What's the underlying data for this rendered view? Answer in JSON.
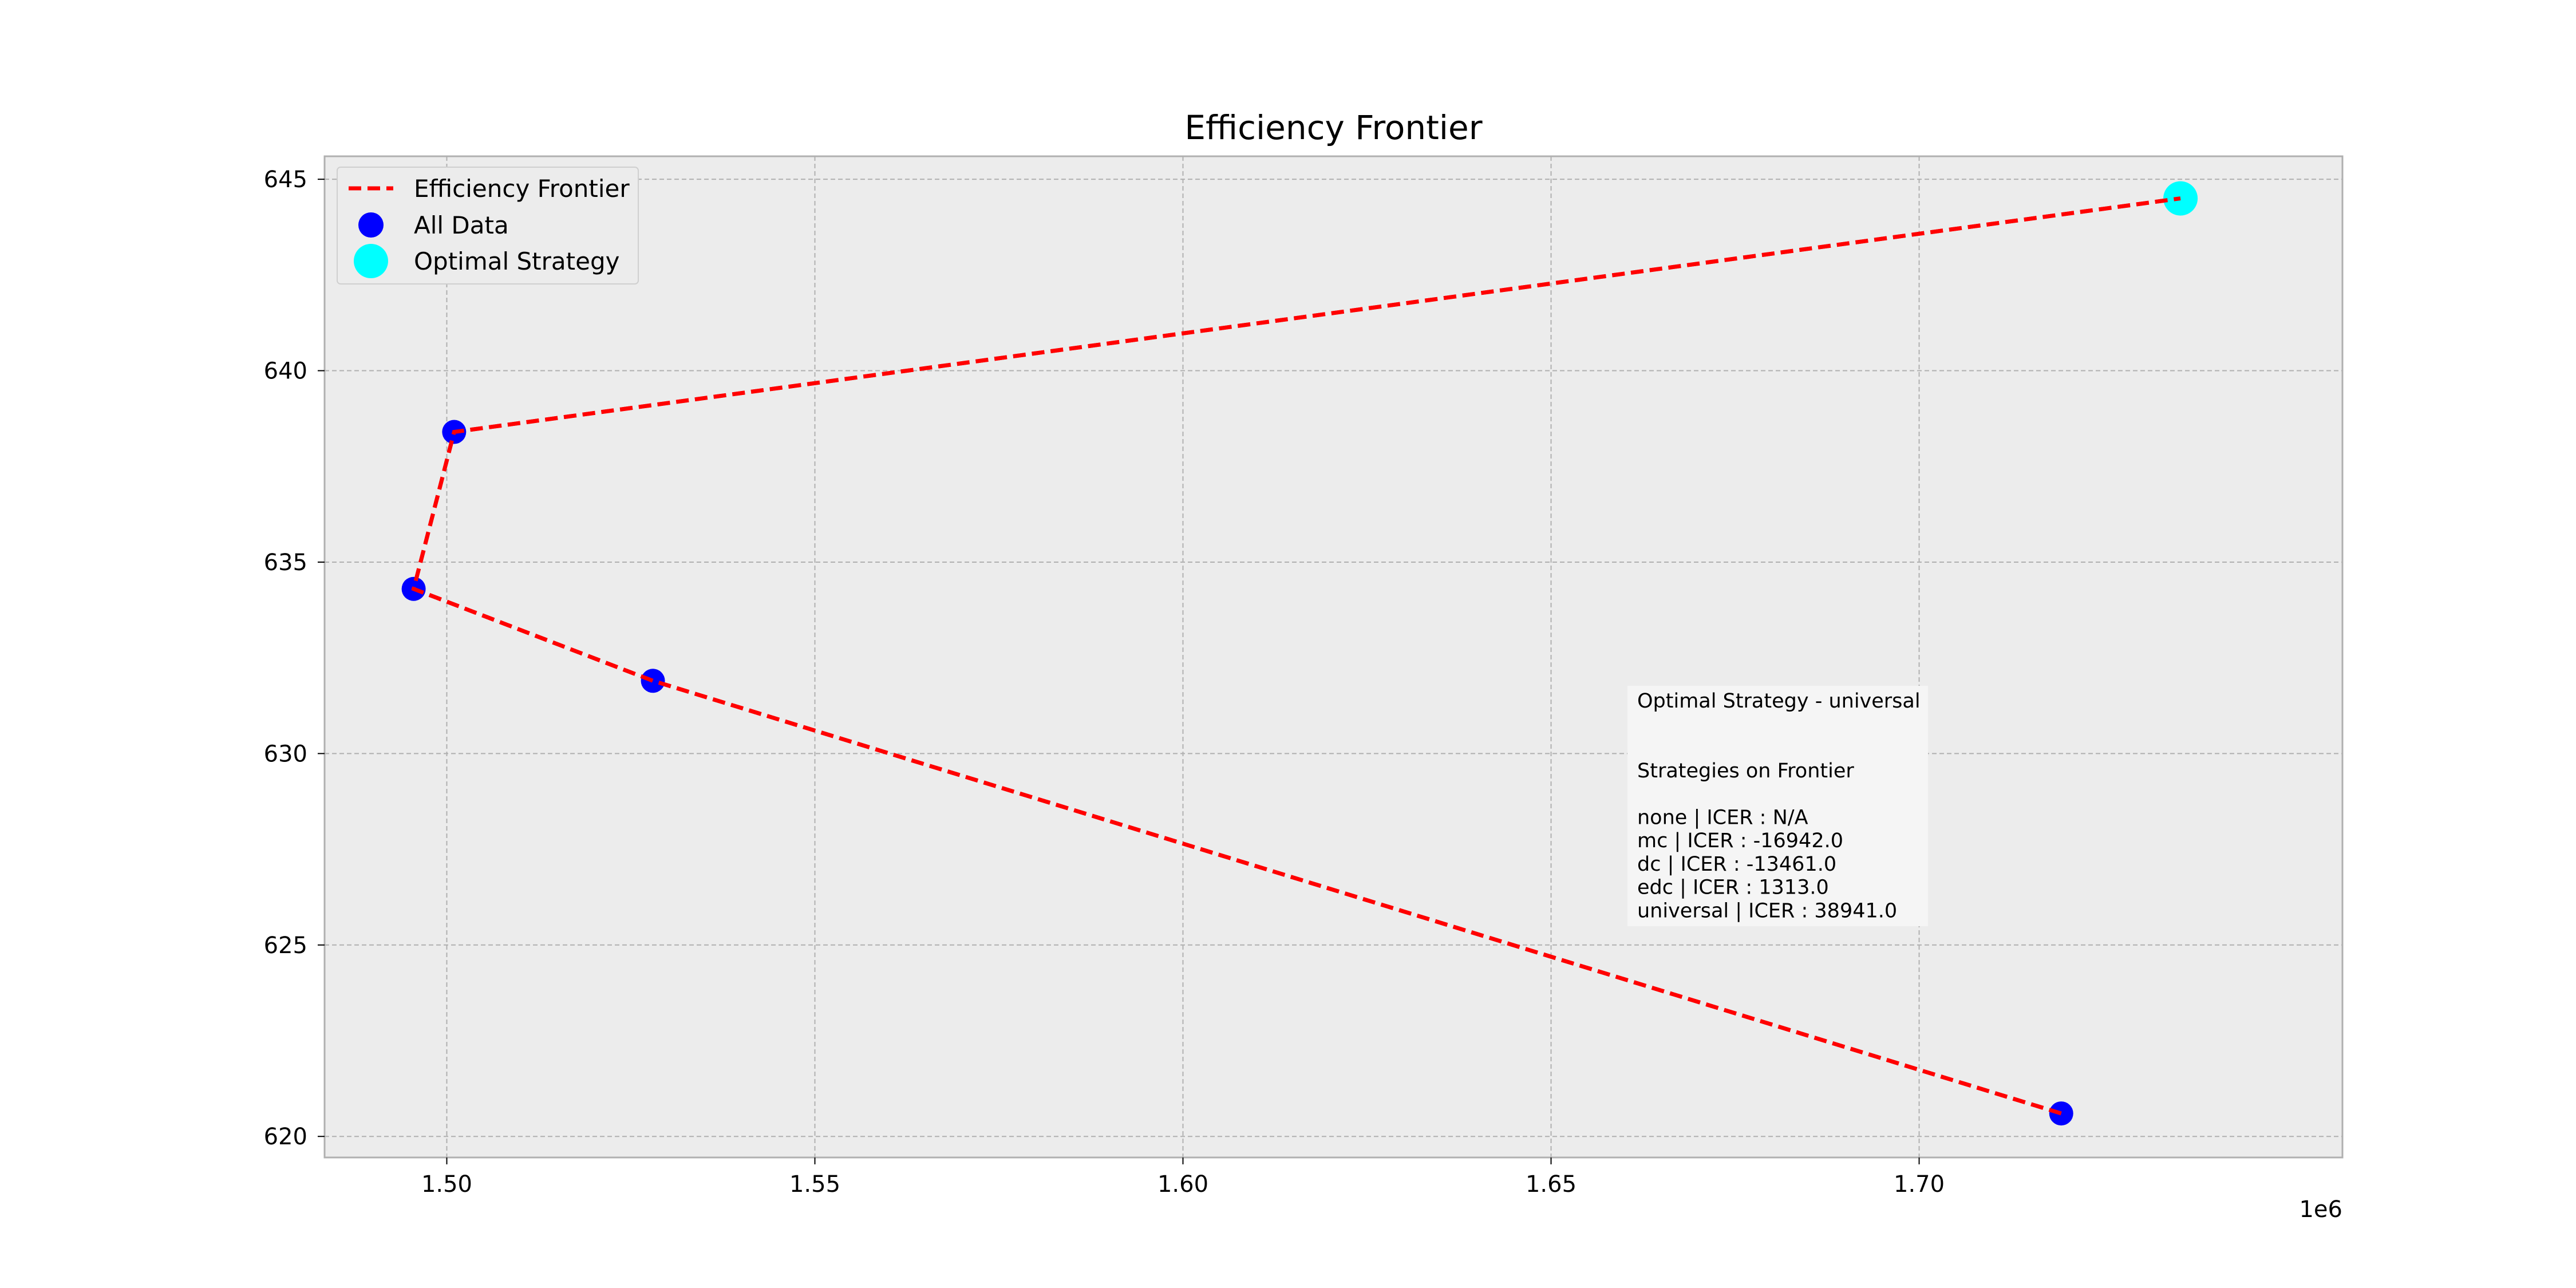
{
  "chart_data": {
    "type": "scatter",
    "title": "Efficiency Frontier",
    "xlabel": "",
    "ylabel": "",
    "x_offset_label": "1e6",
    "xlim": [
      1.4834,
      1.7575
    ],
    "ylim": [
      619.45,
      645.6
    ],
    "xticks": [
      1.5,
      1.55,
      1.6,
      1.65,
      1.7
    ],
    "xtick_labels": [
      "1.50",
      "1.55",
      "1.60",
      "1.65",
      "1.70"
    ],
    "yticks": [
      620,
      625,
      630,
      635,
      640,
      645
    ],
    "ytick_labels": [
      "620",
      "625",
      "630",
      "635",
      "640",
      "645"
    ],
    "grid": true,
    "legend_position": "top-left",
    "series": [
      {
        "name": "Efficiency Frontier",
        "kind": "line",
        "style": "dashed",
        "color": "#ff0000",
        "points": [
          {
            "x": 1.7193,
            "y": 620.6
          },
          {
            "x": 1.528,
            "y": 631.9
          },
          {
            "x": 1.4955,
            "y": 634.3
          },
          {
            "x": 1.501,
            "y": 638.4
          },
          {
            "x": 1.7355,
            "y": 644.5
          }
        ]
      },
      {
        "name": "All Data",
        "kind": "scatter",
        "color": "#0000ff",
        "points": [
          {
            "x": 1.4955,
            "y": 634.3
          },
          {
            "x": 1.501,
            "y": 638.4
          },
          {
            "x": 1.528,
            "y": 631.9
          },
          {
            "x": 1.7193,
            "y": 620.6
          }
        ]
      },
      {
        "name": "Optimal Strategy",
        "kind": "scatter",
        "color": "#00ffff",
        "points": [
          {
            "x": 1.7355,
            "y": 644.5
          }
        ]
      }
    ],
    "annotation": {
      "lines": [
        "Optimal Strategy - universal",
        "",
        "",
        "Strategies on Frontier",
        "",
        "none | ICER : N/A",
        "mc | ICER : -16942.0",
        "dc | ICER : -13461.0",
        "edc | ICER : 1313.0",
        "universal | ICER : 38941.0"
      ]
    },
    "colors": {
      "axes_bg": "#ececec",
      "grid": "#b0b0b0",
      "frontier": "#ff0000",
      "all_data": "#0000ff",
      "optimal": "#00ffff"
    }
  }
}
